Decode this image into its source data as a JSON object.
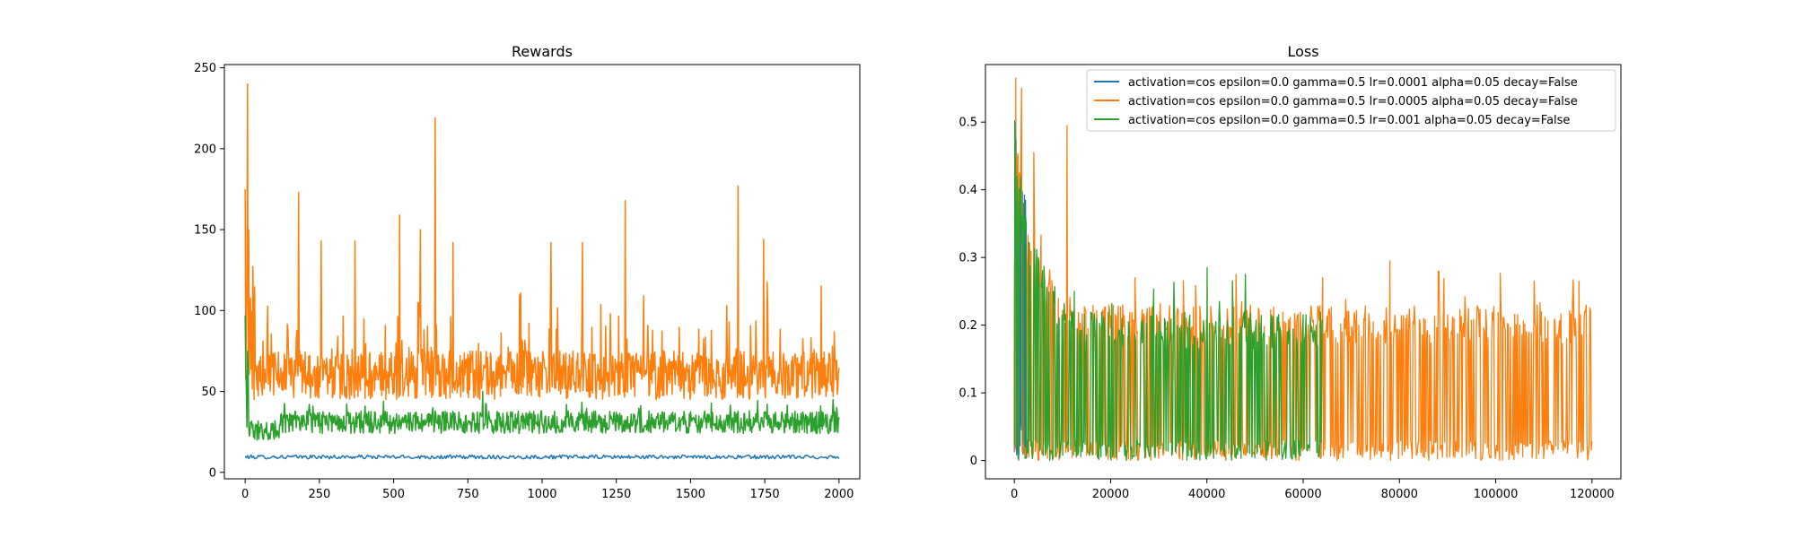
{
  "figure": {
    "background": "#ffffff"
  },
  "chart_data": [
    {
      "type": "line",
      "title": "Rewards",
      "xlabel": "",
      "ylabel": "",
      "xlim": [
        -70,
        2070
      ],
      "ylim": [
        -4,
        252
      ],
      "xticks": [
        0,
        250,
        500,
        750,
        1000,
        1250,
        1500,
        1750,
        2000
      ],
      "yticks": [
        0,
        50,
        100,
        150,
        200,
        250
      ],
      "grid": false,
      "legend": null,
      "series": [
        {
          "color": "#1f77b4",
          "summary": {
            "x_range": [
              0,
              2000
            ],
            "typical_y": 9.5,
            "y_range": [
              8,
              11
            ]
          },
          "keypoints": [
            [
              0,
              10
            ],
            [
              500,
              9.5
            ],
            [
              1000,
              9.5
            ],
            [
              1500,
              9.5
            ],
            [
              2000,
              9.5
            ]
          ]
        },
        {
          "color": "#ff7f0e",
          "summary": {
            "x_range": [
              0,
              2000
            ],
            "typical_y": 60,
            "y_range": [
              35,
              240
            ]
          },
          "peaks": [
            [
              0,
              175
            ],
            [
              8,
              240
            ],
            [
              12,
              150
            ],
            [
              180,
              173
            ],
            [
              255,
              143
            ],
            [
              370,
              143
            ],
            [
              520,
              159
            ],
            [
              590,
              150
            ],
            [
              640,
              219
            ],
            [
              700,
              142
            ],
            [
              1030,
              142
            ],
            [
              1135,
              142
            ],
            [
              1280,
              168
            ],
            [
              1660,
              177
            ],
            [
              1745,
              144
            ]
          ]
        },
        {
          "color": "#2ca02c",
          "summary": {
            "x_range": [
              0,
              2000
            ],
            "typical_y": 30,
            "y_range": [
              17,
              97
            ]
          },
          "peaks": [
            [
              0,
              97
            ],
            [
              5,
              28
            ],
            [
              40,
              20
            ],
            [
              800,
              50
            ],
            [
              1980,
              45
            ]
          ]
        }
      ]
    },
    {
      "type": "line",
      "title": "Loss",
      "xlabel": "",
      "ylabel": "",
      "xlim": [
        -6000,
        126000
      ],
      "ylim": [
        -0.027,
        0.585
      ],
      "xticks": [
        0,
        20000,
        40000,
        60000,
        80000,
        100000,
        120000
      ],
      "yticks": [
        0.0,
        0.1,
        0.2,
        0.3,
        0.4,
        0.5
      ],
      "grid": false,
      "legend": {
        "position": "upper right",
        "entries": [
          {
            "label": "activation=cos epsilon=0.0 gamma=0.5 lr=0.0001 alpha=0.05 decay=False",
            "color": "#1f77b4"
          },
          {
            "label": "activation=cos epsilon=0.0 gamma=0.5 lr=0.0005 alpha=0.05 decay=False",
            "color": "#ff7f0e"
          },
          {
            "label": "activation=cos epsilon=0.0 gamma=0.5 lr=0.001 alpha=0.05 decay=False",
            "color": "#2ca02c"
          }
        ]
      },
      "series": [
        {
          "color": "#1f77b4",
          "summary": {
            "x_range": [
              0,
              2500
            ],
            "y_range": [
              0.0,
              0.52
            ]
          },
          "keypoints": [
            [
              0,
              0.14
            ],
            [
              300,
              0.52
            ],
            [
              1500,
              0.43
            ],
            [
              2500,
              0.38
            ]
          ]
        },
        {
          "color": "#ff7f0e",
          "summary": {
            "x_range": [
              0,
              120000
            ],
            "typical_upper": 0.23,
            "y_range": [
              0.0,
              0.565
            ]
          },
          "peaks": [
            [
              300,
              0.565
            ],
            [
              1500,
              0.55
            ],
            [
              4000,
              0.455
            ],
            [
              11000,
              0.495
            ],
            [
              25000,
              0.27
            ],
            [
              46000,
              0.275
            ],
            [
              64000,
              0.27
            ],
            [
              78000,
              0.295
            ],
            [
              88000,
              0.28
            ],
            [
              108000,
              0.265
            ]
          ]
        },
        {
          "color": "#2ca02c",
          "summary": {
            "x_range": [
              0,
              64000
            ],
            "typical_upper": 0.22,
            "y_range": [
              0.0,
              0.5
            ]
          },
          "peaks": [
            [
              200,
              0.5
            ],
            [
              2000,
              0.38
            ],
            [
              5000,
              0.3
            ],
            [
              40000,
              0.285
            ],
            [
              48000,
              0.275
            ]
          ]
        }
      ]
    }
  ]
}
